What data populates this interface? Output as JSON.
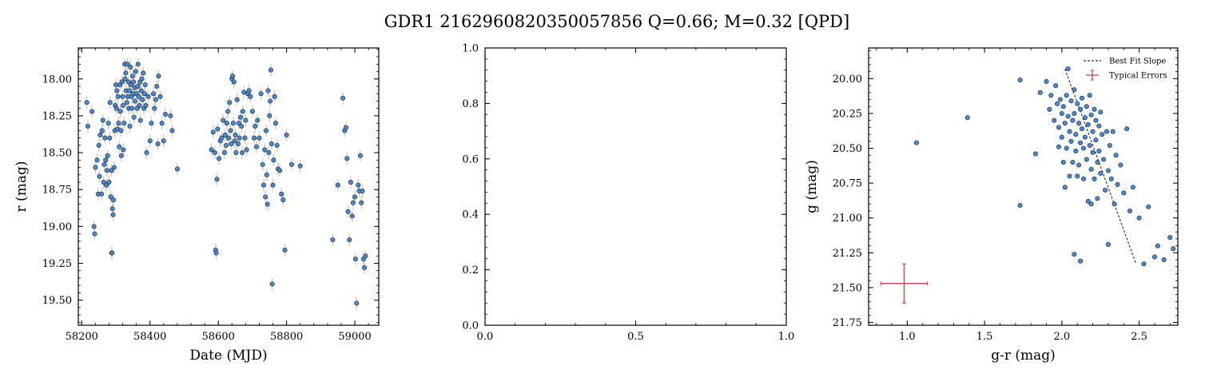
{
  "figure": {
    "title": "GDR1 2162960820350057856  Q=0.66; M=0.32 [QPD]"
  },
  "chart_data": [
    {
      "type": "scatter",
      "name": "lightcurve",
      "xlabel": "Date (MJD)",
      "ylabel": "r (mag)",
      "xlim": [
        58190,
        59070
      ],
      "ylim": [
        19.67,
        17.79
      ],
      "y_inverted": true,
      "xticks": [
        58200,
        58400,
        58600,
        58800,
        59000
      ],
      "xticklabels": [
        "58200",
        "58400",
        "58600",
        "58800",
        "59000"
      ],
      "yticks": [
        18.0,
        18.25,
        18.5,
        18.75,
        19.0,
        19.25,
        19.5
      ],
      "yticklabels": [
        "18.00",
        "18.25",
        "18.50",
        "18.75",
        "19.00",
        "19.25",
        "19.50"
      ],
      "marker_color": "#4a8bd6",
      "errorbar_color": "#c8c8c8",
      "points": [
        [
          58215,
          18.16
        ],
        [
          58218,
          18.32
        ],
        [
          58230,
          18.22
        ],
        [
          58236,
          19.0
        ],
        [
          58238,
          19.05
        ],
        [
          58240,
          18.6
        ],
        [
          58245,
          18.55
        ],
        [
          58248,
          18.78
        ],
        [
          58250,
          18.45
        ],
        [
          58252,
          18.66
        ],
        [
          58254,
          18.38
        ],
        [
          58258,
          18.78
        ],
        [
          58260,
          18.35
        ],
        [
          58262,
          18.28
        ],
        [
          58264,
          18.7
        ],
        [
          58266,
          18.58
        ],
        [
          58268,
          18.4
        ],
        [
          58270,
          18.55
        ],
        [
          58272,
          18.72
        ],
        [
          58274,
          18.62
        ],
        [
          58276,
          18.52
        ],
        [
          58278,
          18.3
        ],
        [
          58280,
          18.7
        ],
        [
          58282,
          18.4
        ],
        [
          58283,
          18.16
        ],
        [
          58285,
          18.8
        ],
        [
          58287,
          18.62
        ],
        [
          58288,
          19.18
        ],
        [
          58289,
          19.18
        ],
        [
          58290,
          18.88
        ],
        [
          58292,
          18.92
        ],
        [
          58293,
          18.82
        ],
        [
          58295,
          18.6
        ],
        [
          58297,
          18.35
        ],
        [
          58298,
          18.18
        ],
        [
          58300,
          18.04
        ],
        [
          58302,
          18.2
        ],
        [
          58303,
          18.08
        ],
        [
          58305,
          18.34
        ],
        [
          58306,
          18.12
        ],
        [
          58308,
          18.3
        ],
        [
          58310,
          18.46
        ],
        [
          58312,
          18.04
        ],
        [
          58313,
          18.22
        ],
        [
          58315,
          18.35
        ],
        [
          58316,
          18.52
        ],
        [
          58318,
          18.02
        ],
        [
          58320,
          18.12
        ],
        [
          58321,
          18.18
        ],
        [
          58322,
          18.48
        ],
        [
          58324,
          18.3
        ],
        [
          58326,
          17.9
        ],
        [
          58327,
          18.0
        ],
        [
          58329,
          17.96
        ],
        [
          58330,
          18.08
        ],
        [
          58332,
          18.16
        ],
        [
          58334,
          17.9
        ],
        [
          58335,
          18.12
        ],
        [
          58337,
          18.02
        ],
        [
          58338,
          18.2
        ],
        [
          58340,
          18.08
        ],
        [
          58341,
          18.32
        ],
        [
          58343,
          17.92
        ],
        [
          58344,
          18.04
        ],
        [
          58346,
          18.12
        ],
        [
          58347,
          18.2
        ],
        [
          58349,
          17.98
        ],
        [
          58350,
          18.1
        ],
        [
          58352,
          18.02
        ],
        [
          58353,
          18.26
        ],
        [
          58355,
          18.06
        ],
        [
          58356,
          18.15
        ],
        [
          58358,
          17.95
        ],
        [
          58360,
          18.1
        ],
        [
          58362,
          18.2
        ],
        [
          58364,
          18.05
        ],
        [
          58365,
          17.9
        ],
        [
          58367,
          18.12
        ],
        [
          58369,
          18.18
        ],
        [
          58371,
          18.02
        ],
        [
          58372,
          18.28
        ],
        [
          58374,
          18.08
        ],
        [
          58376,
          18.0
        ],
        [
          58378,
          18.14
        ],
        [
          58380,
          17.96
        ],
        [
          58382,
          18.2
        ],
        [
          58384,
          18.1
        ],
        [
          58386,
          18.04
        ],
        [
          58388,
          18.18
        ],
        [
          58390,
          18.5
        ],
        [
          58395,
          18.12
        ],
        [
          58400,
          18.42
        ],
        [
          58404,
          18.3
        ],
        [
          58410,
          18.1
        ],
        [
          58413,
          18.2
        ],
        [
          58417,
          18.14
        ],
        [
          58420,
          18.05
        ],
        [
          58423,
          18.44
        ],
        [
          58425,
          17.98
        ],
        [
          58430,
          18.12
        ],
        [
          58435,
          18.3
        ],
        [
          58440,
          18.42
        ],
        [
          58445,
          18.24
        ],
        [
          58460,
          18.25
        ],
        [
          58465,
          18.35
        ],
        [
          58480,
          18.61
        ],
        [
          58580,
          18.48
        ],
        [
          58585,
          18.36
        ],
        [
          58590,
          18.5
        ],
        [
          58592,
          19.16
        ],
        [
          58594,
          19.18
        ],
        [
          58596,
          18.68
        ],
        [
          58598,
          18.34
        ],
        [
          58602,
          18.54
        ],
        [
          58606,
          18.42
        ],
        [
          58610,
          18.4
        ],
        [
          58614,
          18.28
        ],
        [
          58618,
          18.5
        ],
        [
          58620,
          18.38
        ],
        [
          58623,
          18.45
        ],
        [
          58625,
          18.3
        ],
        [
          58628,
          18.22
        ],
        [
          58630,
          18.4
        ],
        [
          58633,
          18.16
        ],
        [
          58636,
          18.35
        ],
        [
          58638,
          18.44
        ],
        [
          58640,
          18.0
        ],
        [
          58642,
          17.98
        ],
        [
          58644,
          18.3
        ],
        [
          58646,
          18.02
        ],
        [
          58648,
          18.42
        ],
        [
          58650,
          18.38
        ],
        [
          58652,
          18.5
        ],
        [
          58655,
          18.14
        ],
        [
          58658,
          18.44
        ],
        [
          58660,
          18.3
        ],
        [
          58662,
          18.4
        ],
        [
          58665,
          18.26
        ],
        [
          58668,
          18.32
        ],
        [
          58670,
          18.5
        ],
        [
          58672,
          18.22
        ],
        [
          58675,
          18.09
        ],
        [
          58678,
          18.4
        ],
        [
          58680,
          18.28
        ],
        [
          58683,
          18.48
        ],
        [
          58686,
          18.1
        ],
        [
          58690,
          18.08
        ],
        [
          58694,
          18.12
        ],
        [
          58700,
          18.22
        ],
        [
          58705,
          18.4
        ],
        [
          58708,
          18.32
        ],
        [
          58712,
          18.46
        ],
        [
          58715,
          18.28
        ],
        [
          58720,
          18.4
        ],
        [
          58725,
          18.1
        ],
        [
          58730,
          18.58
        ],
        [
          58733,
          18.72
        ],
        [
          58736,
          18.48
        ],
        [
          58738,
          18.8
        ],
        [
          58740,
          18.35
        ],
        [
          58742,
          18.65
        ],
        [
          58744,
          18.85
        ],
        [
          58746,
          18.08
        ],
        [
          58748,
          18.5
        ],
        [
          58750,
          18.25
        ],
        [
          58752,
          18.15
        ],
        [
          58754,
          17.94
        ],
        [
          58756,
          18.44
        ],
        [
          58758,
          19.39
        ],
        [
          58760,
          18.72
        ],
        [
          58762,
          18.55
        ],
        [
          58765,
          18.12
        ],
        [
          58768,
          18.3
        ],
        [
          58772,
          18.45
        ],
        [
          58775,
          18.61
        ],
        [
          58780,
          18.62
        ],
        [
          58785,
          18.78
        ],
        [
          58790,
          18.82
        ],
        [
          58795,
          19.16
        ],
        [
          58800,
          18.38
        ],
        [
          58815,
          18.58
        ],
        [
          58840,
          18.59
        ],
        [
          58935,
          19.09
        ],
        [
          58950,
          18.72
        ],
        [
          58965,
          18.13
        ],
        [
          58970,
          18.35
        ],
        [
          58974,
          18.33
        ],
        [
          58977,
          18.54
        ],
        [
          58980,
          18.9
        ],
        [
          58984,
          19.09
        ],
        [
          58988,
          18.7
        ],
        [
          58992,
          18.93
        ],
        [
          58995,
          18.84
        ],
        [
          59000,
          18.8
        ],
        [
          59002,
          19.22
        ],
        [
          59005,
          19.52
        ],
        [
          59010,
          18.72
        ],
        [
          59013,
          18.76
        ],
        [
          59016,
          18.52
        ],
        [
          59019,
          18.84
        ],
        [
          59022,
          18.76
        ],
        [
          59025,
          19.22
        ],
        [
          59028,
          19.28
        ],
        [
          59031,
          19.2
        ]
      ]
    },
    {
      "type": "scatter",
      "name": "empty-axes",
      "xlim": [
        0,
        1
      ],
      "ylim": [
        0,
        1
      ],
      "xticks": [
        0,
        0.5,
        1.0
      ],
      "xticklabels": [
        "0.0",
        "0.5",
        "1.0"
      ],
      "yticks": [
        0,
        0.2,
        0.4,
        0.6,
        0.8,
        1.0
      ],
      "yticklabels": [
        "0.0",
        "0.2",
        "0.4",
        "0.6",
        "0.8",
        "1.0"
      ],
      "points": []
    },
    {
      "type": "scatter",
      "name": "color-magnitude",
      "xlabel": "g-r (mag)",
      "ylabel": "g (mag)",
      "xlim": [
        0.75,
        2.75
      ],
      "ylim": [
        21.77,
        19.78
      ],
      "y_inverted": true,
      "xticks": [
        1.0,
        1.5,
        2.0,
        2.5
      ],
      "xticklabels": [
        "1.0",
        "1.5",
        "2.0",
        "2.5"
      ],
      "yticks": [
        20.0,
        20.25,
        20.5,
        20.75,
        21.0,
        21.25,
        21.5,
        21.75
      ],
      "yticklabels": [
        "20.00",
        "20.25",
        "20.50",
        "20.75",
        "21.00",
        "21.25",
        "21.50",
        "21.75"
      ],
      "legend": {
        "position": "upper-right",
        "entries": [
          "Best Fit Slope",
          "Typical Errors"
        ]
      },
      "best_fit_line": [
        [
          2.02,
          19.93
        ],
        [
          2.48,
          21.33
        ]
      ],
      "typical_error": {
        "x": 0.98,
        "y": 21.47,
        "xerr": 0.15,
        "yerr": 0.14
      },
      "marker_color": "#4a8bd6",
      "fit_color": "#000000",
      "error_color": "#c44e52",
      "points": [
        [
          1.06,
          20.46
        ],
        [
          1.39,
          20.28
        ],
        [
          1.73,
          20.01
        ],
        [
          1.73,
          20.91
        ],
        [
          1.83,
          20.54
        ],
        [
          1.86,
          20.1
        ],
        [
          1.9,
          20.02
        ],
        [
          1.92,
          20.22
        ],
        [
          1.93,
          20.12
        ],
        [
          1.95,
          20.3
        ],
        [
          1.96,
          20.05
        ],
        [
          1.97,
          20.18
        ],
        [
          1.98,
          20.35
        ],
        [
          1.98,
          20.49
        ],
        [
          1.99,
          20.15
        ],
        [
          2.0,
          20.25
        ],
        [
          2.0,
          20.42
        ],
        [
          2.01,
          20.2
        ],
        [
          2.01,
          20.6
        ],
        [
          2.02,
          20.32
        ],
        [
          2.02,
          20.78
        ],
        [
          2.03,
          20.12
        ],
        [
          2.03,
          20.5
        ],
        [
          2.04,
          19.93
        ],
        [
          2.04,
          20.27
        ],
        [
          2.05,
          20.38
        ],
        [
          2.05,
          20.7
        ],
        [
          2.06,
          20.16
        ],
        [
          2.06,
          20.45
        ],
        [
          2.07,
          20.3
        ],
        [
          2.07,
          20.6
        ],
        [
          2.08,
          20.08
        ],
        [
          2.08,
          20.25
        ],
        [
          2.08,
          21.26
        ],
        [
          2.09,
          20.4
        ],
        [
          2.09,
          20.52
        ],
        [
          2.1,
          20.18
        ],
        [
          2.1,
          20.7
        ],
        [
          2.11,
          20.32
        ],
        [
          2.11,
          20.62
        ],
        [
          2.12,
          20.22
        ],
        [
          2.12,
          20.46
        ],
        [
          2.12,
          21.31
        ],
        [
          2.13,
          20.14
        ],
        [
          2.13,
          20.36
        ],
        [
          2.14,
          20.5
        ],
        [
          2.14,
          20.72
        ],
        [
          2.15,
          20.28
        ],
        [
          2.15,
          20.42
        ],
        [
          2.16,
          20.2
        ],
        [
          2.16,
          20.58
        ],
        [
          2.17,
          20.33
        ],
        [
          2.17,
          20.88
        ],
        [
          2.18,
          20.12
        ],
        [
          2.18,
          20.48
        ],
        [
          2.19,
          20.26
        ],
        [
          2.19,
          20.65
        ],
        [
          2.19,
          20.9
        ],
        [
          2.2,
          20.38
        ],
        [
          2.2,
          20.53
        ],
        [
          2.21,
          20.22
        ],
        [
          2.21,
          20.72
        ],
        [
          2.22,
          20.3
        ],
        [
          2.22,
          20.44
        ],
        [
          2.23,
          20.6
        ],
        [
          2.23,
          20.86
        ],
        [
          2.24,
          20.34
        ],
        [
          2.24,
          20.52
        ],
        [
          2.25,
          20.24
        ],
        [
          2.25,
          20.68
        ],
        [
          2.26,
          20.4
        ],
        [
          2.27,
          20.58
        ],
        [
          2.28,
          20.8
        ],
        [
          2.29,
          20.38
        ],
        [
          2.3,
          20.66
        ],
        [
          2.3,
          21.19
        ],
        [
          2.31,
          20.48
        ],
        [
          2.32,
          20.72
        ],
        [
          2.33,
          20.38
        ],
        [
          2.34,
          20.9
        ],
        [
          2.35,
          20.55
        ],
        [
          2.36,
          20.76
        ],
        [
          2.38,
          20.62
        ],
        [
          2.4,
          20.82
        ],
        [
          2.42,
          20.36
        ],
        [
          2.44,
          20.95
        ],
        [
          2.46,
          20.78
        ],
        [
          2.5,
          21.0
        ],
        [
          2.53,
          21.33
        ],
        [
          2.56,
          20.92
        ],
        [
          2.6,
          21.28
        ],
        [
          2.62,
          21.2
        ],
        [
          2.66,
          21.3
        ],
        [
          2.7,
          21.14
        ],
        [
          2.72,
          21.22
        ]
      ]
    }
  ]
}
